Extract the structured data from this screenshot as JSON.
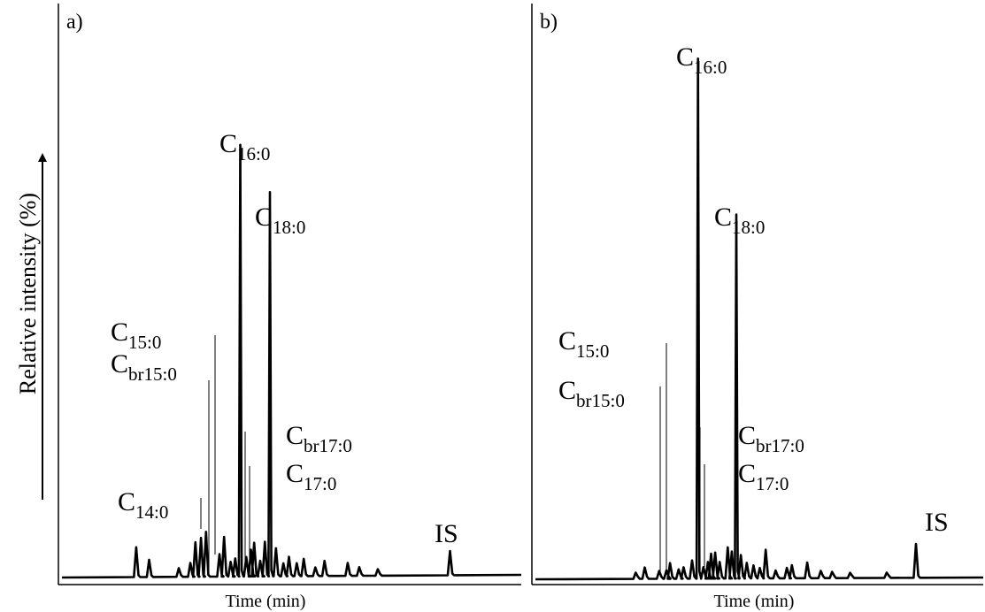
{
  "y_axis_label": "Relative intensity (%)",
  "chart_data": [
    {
      "type": "line",
      "panel_label": "a)",
      "xlabel": "Time (min)",
      "ylabel": "Relative intensity (%)",
      "x_range": [
        0,
        100
      ],
      "y_range": [
        0,
        100
      ],
      "line_color": "#000000",
      "peaks": [
        {
          "x": 16.8,
          "y": 6.9
        },
        {
          "x": 19.6,
          "y": 4.0
        },
        {
          "x": 26.0,
          "y": 2.0
        },
        {
          "x": 28.5,
          "y": 3.2
        },
        {
          "x": 29.6,
          "y": 8.0
        },
        {
          "x": 30.8,
          "y": 9.0
        },
        {
          "x": 31.9,
          "y": 10.4,
          "label": "C",
          "sub": "14:0"
        },
        {
          "x": 34.8,
          "y": 5.2,
          "label": "C",
          "sub": "br15:0"
        },
        {
          "x": 35.8,
          "y": 9.2,
          "label": "C",
          "sub": "15:0"
        },
        {
          "x": 37.2,
          "y": 3.4
        },
        {
          "x": 38.2,
          "y": 4.2
        },
        {
          "x": 39.3,
          "y": 100.0,
          "label": "C",
          "sub": "16:0"
        },
        {
          "x": 40.6,
          "y": 4.5
        },
        {
          "x": 41.6,
          "y": 6.2,
          "label": "C",
          "sub": "br17:0"
        },
        {
          "x": 42.3,
          "y": 7.8,
          "label": "C",
          "sub": "17:0"
        },
        {
          "x": 43.6,
          "y": 3.6
        },
        {
          "x": 44.6,
          "y": 8.0
        },
        {
          "x": 45.7,
          "y": 89.0,
          "label": "C",
          "sub": "18:0"
        },
        {
          "x": 47.0,
          "y": 6.5
        },
        {
          "x": 48.6,
          "y": 3.0
        },
        {
          "x": 49.8,
          "y": 4.5
        },
        {
          "x": 51.5,
          "y": 3.0
        },
        {
          "x": 53.0,
          "y": 4.0
        },
        {
          "x": 55.5,
          "y": 2.0
        },
        {
          "x": 57.5,
          "y": 3.5
        },
        {
          "x": 62.5,
          "y": 3.0
        },
        {
          "x": 65.0,
          "y": 2.0
        },
        {
          "x": 69.0,
          "y": 1.5
        },
        {
          "x": 84.6,
          "y": 5.6,
          "label": "IS"
        }
      ]
    },
    {
      "type": "line",
      "panel_label": "b)",
      "xlabel": "Time (min)",
      "ylabel": "Relative intensity (%)",
      "x_range": [
        0,
        100
      ],
      "y_range": [
        0,
        100
      ],
      "line_color": "#000000",
      "peaks": [
        {
          "x": 23.0,
          "y": 1.2
        },
        {
          "x": 25.0,
          "y": 2.2
        },
        {
          "x": 28.2,
          "y": 1.5
        },
        {
          "x": 29.8,
          "y": 1.6,
          "label": "C",
          "sub": "br15:0"
        },
        {
          "x": 30.6,
          "y": 3.0,
          "label": "C",
          "sub": "15:0"
        },
        {
          "x": 32.5,
          "y": 1.8
        },
        {
          "x": 33.6,
          "y": 2.2
        },
        {
          "x": 35.5,
          "y": 3.5
        },
        {
          "x": 36.8,
          "y": 100.0,
          "label": "C",
          "sub": "16:0"
        },
        {
          "x": 38.0,
          "y": 2.2
        },
        {
          "x": 39.0,
          "y": 3.2,
          "label": "C",
          "sub": "br17:0"
        },
        {
          "x": 39.7,
          "y": 4.8,
          "label": "C",
          "sub": "17:0"
        },
        {
          "x": 40.6,
          "y": 5.0
        },
        {
          "x": 41.6,
          "y": 3.2
        },
        {
          "x": 43.4,
          "y": 6.0
        },
        {
          "x": 44.3,
          "y": 5.2
        },
        {
          "x": 45.3,
          "y": 70.0,
          "label": "C",
          "sub": "18:0"
        },
        {
          "x": 46.3,
          "y": 4.5
        },
        {
          "x": 47.6,
          "y": 3.0
        },
        {
          "x": 49.1,
          "y": 2.5
        },
        {
          "x": 50.5,
          "y": 2.0
        },
        {
          "x": 51.8,
          "y": 5.5
        },
        {
          "x": 54.0,
          "y": 1.5
        },
        {
          "x": 56.5,
          "y": 2.0
        },
        {
          "x": 57.6,
          "y": 2.5
        },
        {
          "x": 61.0,
          "y": 3.0
        },
        {
          "x": 64.0,
          "y": 1.4
        },
        {
          "x": 66.5,
          "y": 1.2
        },
        {
          "x": 70.5,
          "y": 1.0
        },
        {
          "x": 78.6,
          "y": 1.0
        },
        {
          "x": 85.1,
          "y": 6.5,
          "label": "IS"
        }
      ]
    }
  ]
}
